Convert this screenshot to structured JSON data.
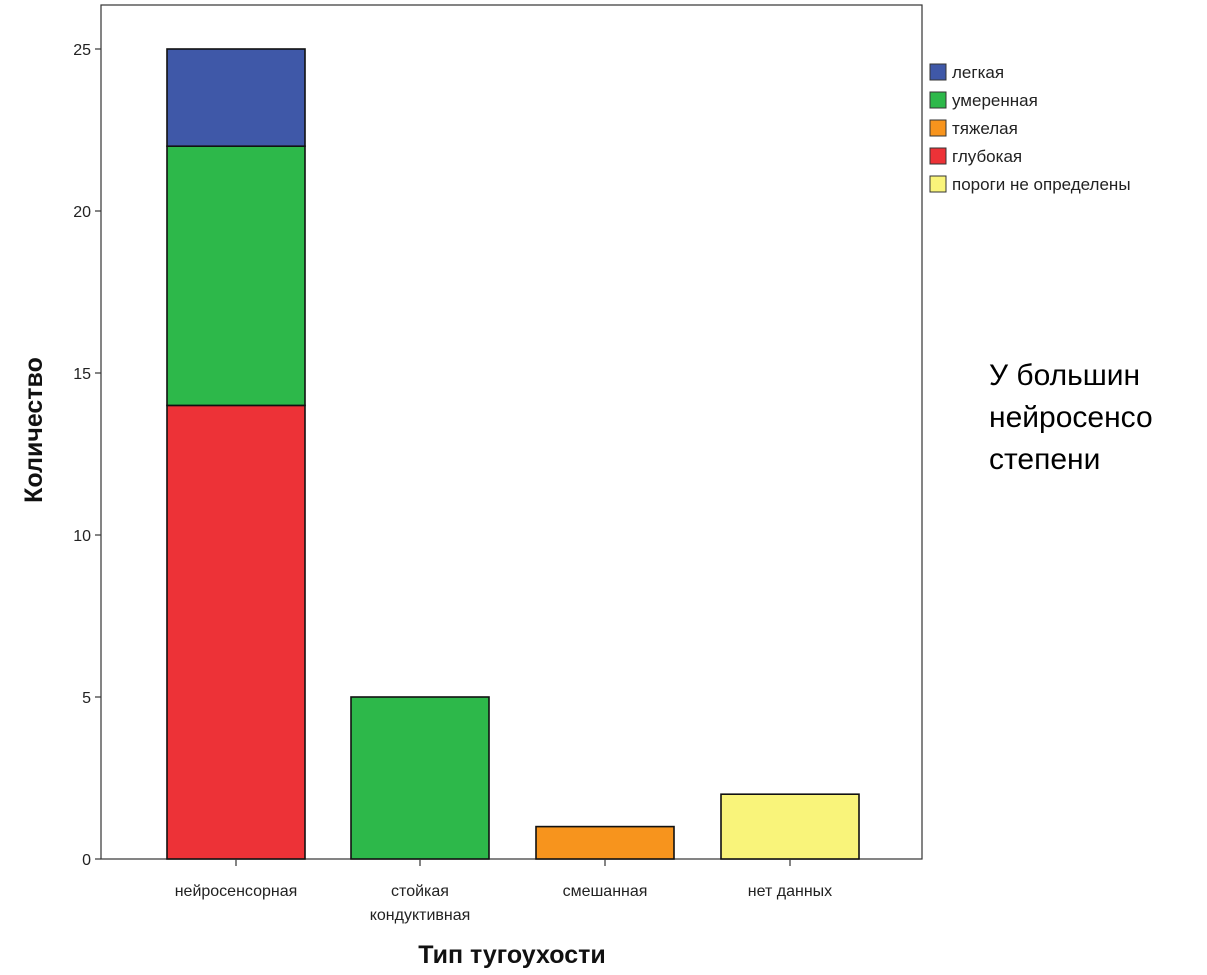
{
  "chart_data": {
    "type": "bar",
    "stacked": true,
    "title": "",
    "xlabel": "Тип тугоухости",
    "ylabel": "Количество",
    "ylim": [
      0,
      25
    ],
    "yticks": [
      0,
      5,
      10,
      15,
      20,
      25
    ],
    "grid": false,
    "legend_position": "right",
    "categories": [
      [
        "нейросенсорная"
      ],
      [
        "стойкая",
        "кондуктивная"
      ],
      [
        "смешанная"
      ],
      [
        "нет данных"
      ]
    ],
    "series": [
      {
        "name": "легкая",
        "color": "#3f58a8",
        "values": [
          3,
          0,
          0,
          0
        ]
      },
      {
        "name": "умеренная",
        "color": "#2db84a",
        "values": [
          8,
          5,
          0,
          0
        ]
      },
      {
        "name": "тяжелая",
        "color": "#f7941d",
        "values": [
          0,
          0,
          1,
          0
        ]
      },
      {
        "name": "глубокая",
        "color": "#ed3237",
        "values": [
          14,
          0,
          0,
          0
        ]
      },
      {
        "name": "пороги не определены",
        "color": "#f9f47a",
        "values": [
          0,
          0,
          0,
          2
        ]
      }
    ],
    "stack_order": [
      "глубокая",
      "тяжелая",
      "умеренная",
      "пороги не определены",
      "легкая"
    ]
  },
  "side_note": {
    "lines": [
      "У большин",
      "нейросенсо",
      "степени"
    ]
  }
}
